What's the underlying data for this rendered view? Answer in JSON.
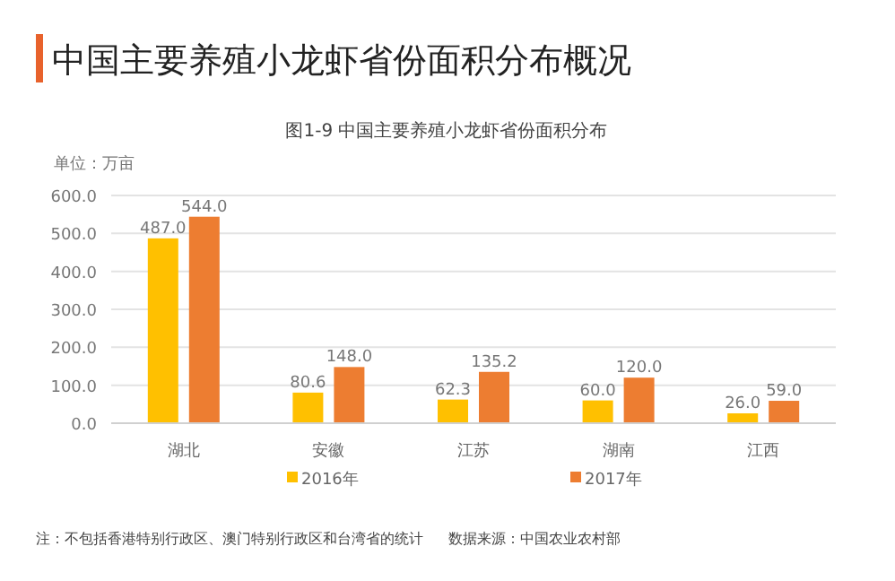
{
  "chart_data": {
    "type": "bar",
    "title": "中国主要养殖小龙虾省份面积分布概况",
    "subtitle": "图1-9 中国主要养殖小龙虾省份面积分布",
    "ylabel": "单位：万亩",
    "categories": [
      "湖北",
      "安徽",
      "江苏",
      "湖南",
      "江西"
    ],
    "series": [
      {
        "name": "2016年",
        "color": "#ffc000",
        "values": [
          487.0,
          80.6,
          62.3,
          60.0,
          26.0
        ],
        "value_labels": [
          "487.0",
          "80.6",
          "62.3",
          "60.0",
          "26.0"
        ]
      },
      {
        "name": "2017年",
        "color": "#ed7d31",
        "values": [
          544.0,
          148.0,
          135.2,
          120.0,
          59.0
        ],
        "value_labels": [
          "544.0",
          "148.0",
          "135.2",
          "120.0",
          "59.0"
        ]
      }
    ],
    "ylim": [
      0,
      600
    ],
    "yticks": [
      {
        "value": 0,
        "label": "0.0"
      },
      {
        "value": 100,
        "label": "100.0"
      },
      {
        "value": 200,
        "label": "200.0"
      },
      {
        "value": 300,
        "label": "300.0"
      },
      {
        "value": 400,
        "label": "400.0"
      },
      {
        "value": 500,
        "label": "500.0"
      },
      {
        "value": 600,
        "label": "600.0"
      }
    ],
    "grid": "y",
    "legend": "bottom",
    "annotations": [
      "注：不包括香港特别行政区、澳门特别行政区和台湾省的统计",
      "数据来源：中国农业农村部"
    ]
  }
}
